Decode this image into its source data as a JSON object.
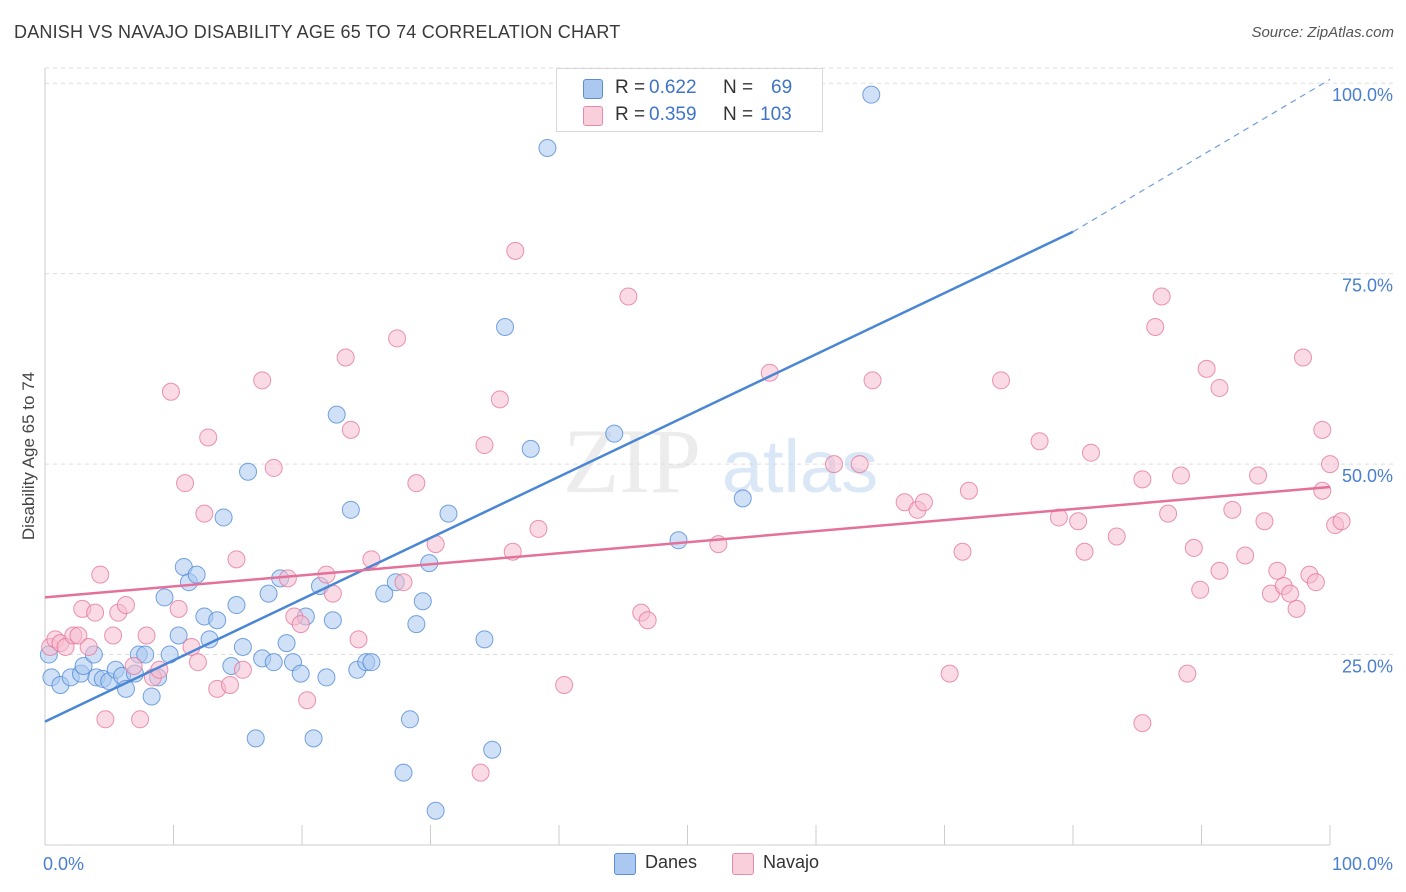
{
  "header": {
    "title": "DANISH VS NAVAJO DISABILITY AGE 65 TO 74 CORRELATION CHART",
    "source": "Source: ZipAtlas.com"
  },
  "watermark": {
    "zip": "ZIP",
    "atlas": "atlas"
  },
  "legend": {
    "rows": [
      {
        "r_label": "R =",
        "r_value": "0.622",
        "n_label": "N =",
        "n_value": "69",
        "color": "#aac8f0"
      },
      {
        "r_label": "R =",
        "r_value": "0.359",
        "n_label": "N =",
        "n_value": "103",
        "color": "#f6bccd"
      }
    ]
  },
  "bottom_legend": [
    {
      "label": "Danes",
      "color": "#aac8f0"
    },
    {
      "label": "Navajo",
      "color": "#f6bccd"
    }
  ],
  "chart_data": {
    "type": "scatter",
    "ylabel": "Disability Age 65 to 74",
    "xlim": [
      0,
      100
    ],
    "ylim": [
      0,
      102
    ],
    "x_tick_labels": [
      "0.0%",
      "100.0%"
    ],
    "y_ticks": [
      25,
      50,
      75,
      100
    ],
    "y_tick_labels": [
      "25.0%",
      "50.0%",
      "75.0%",
      "100.0%"
    ],
    "grid": "horizontal dashed",
    "series": [
      {
        "name": "Danes",
        "color": "#4a86d4",
        "fill": "#aac8f0",
        "trend": {
          "x0": 0,
          "y0": 16.2,
          "x1": 80,
          "y1": 80.5,
          "extend_to": 100,
          "extend_y": 100.5
        },
        "points": [
          [
            0.5,
            22
          ],
          [
            1.2,
            21
          ],
          [
            2.0,
            22
          ],
          [
            2.8,
            22.5
          ],
          [
            3.0,
            23.5
          ],
          [
            3.8,
            25
          ],
          [
            4.0,
            22
          ],
          [
            4.5,
            21.8
          ],
          [
            5.0,
            21.5
          ],
          [
            5.5,
            23
          ],
          [
            6.0,
            22.2
          ],
          [
            6.3,
            20.5
          ],
          [
            7.0,
            22.5
          ],
          [
            7.3,
            25
          ],
          [
            7.8,
            25
          ],
          [
            8.3,
            19.5
          ],
          [
            8.8,
            22
          ],
          [
            9.3,
            32.5
          ],
          [
            9.7,
            25
          ],
          [
            10.4,
            27.5
          ],
          [
            10.8,
            36.5
          ],
          [
            11.2,
            34.5
          ],
          [
            11.8,
            35.5
          ],
          [
            12.4,
            30
          ],
          [
            12.8,
            27
          ],
          [
            13.4,
            29.5
          ],
          [
            13.9,
            43
          ],
          [
            14.5,
            23.5
          ],
          [
            14.9,
            31.5
          ],
          [
            15.4,
            26
          ],
          [
            15.8,
            49
          ],
          [
            16.4,
            14
          ],
          [
            16.9,
            24.5
          ],
          [
            17.4,
            33
          ],
          [
            17.8,
            24
          ],
          [
            18.3,
            35
          ],
          [
            18.8,
            26.5
          ],
          [
            19.3,
            24
          ],
          [
            19.9,
            22.5
          ],
          [
            20.3,
            30
          ],
          [
            20.9,
            14
          ],
          [
            21.4,
            34
          ],
          [
            21.9,
            22
          ],
          [
            22.4,
            29.5
          ],
          [
            22.7,
            56.5
          ],
          [
            23.8,
            44
          ],
          [
            24.3,
            23
          ],
          [
            25.0,
            24
          ],
          [
            25.4,
            24
          ],
          [
            26.4,
            33
          ],
          [
            27.3,
            34.5
          ],
          [
            27.9,
            9.5
          ],
          [
            28.4,
            16.5
          ],
          [
            28.9,
            29
          ],
          [
            29.4,
            32
          ],
          [
            29.9,
            37
          ],
          [
            30.4,
            4.5
          ],
          [
            31.4,
            43.5
          ],
          [
            34.2,
            27
          ],
          [
            34.8,
            12.5
          ],
          [
            35.8,
            68
          ],
          [
            37.8,
            52
          ],
          [
            39.1,
            91.5
          ],
          [
            44.3,
            54
          ],
          [
            49.3,
            40
          ],
          [
            51.9,
            100
          ],
          [
            54.3,
            45.5
          ],
          [
            64.3,
            98.5
          ],
          [
            0.3,
            25
          ]
        ]
      },
      {
        "name": "Navajo",
        "color": "#e3719a",
        "fill": "#f6bccd",
        "trend": {
          "x0": 0,
          "y0": 32.5,
          "x1": 100,
          "y1": 47
        },
        "points": [
          [
            0.4,
            26
          ],
          [
            0.8,
            27
          ],
          [
            1.2,
            26.5
          ],
          [
            1.6,
            26
          ],
          [
            2.2,
            27.5
          ],
          [
            2.6,
            27.5
          ],
          [
            2.9,
            31
          ],
          [
            3.4,
            26
          ],
          [
            3.9,
            30.5
          ],
          [
            4.3,
            35.5
          ],
          [
            4.7,
            16.5
          ],
          [
            5.3,
            27.5
          ],
          [
            5.7,
            30.5
          ],
          [
            6.3,
            31.5
          ],
          [
            6.9,
            23.5
          ],
          [
            7.4,
            16.5
          ],
          [
            7.9,
            27.5
          ],
          [
            8.4,
            22
          ],
          [
            8.9,
            23
          ],
          [
            9.8,
            59.5
          ],
          [
            10.4,
            31
          ],
          [
            10.9,
            47.5
          ],
          [
            11.4,
            26
          ],
          [
            11.9,
            24
          ],
          [
            12.4,
            43.5
          ],
          [
            12.7,
            53.5
          ],
          [
            13.4,
            20.5
          ],
          [
            14.4,
            21
          ],
          [
            14.9,
            37.5
          ],
          [
            15.4,
            23
          ],
          [
            16.9,
            61
          ],
          [
            17.8,
            49.5
          ],
          [
            18.9,
            35
          ],
          [
            19.4,
            30
          ],
          [
            19.9,
            29
          ],
          [
            20.4,
            19
          ],
          [
            21.9,
            35.5
          ],
          [
            22.4,
            33
          ],
          [
            23.4,
            64
          ],
          [
            23.8,
            54.5
          ],
          [
            24.4,
            27
          ],
          [
            25.4,
            37.5
          ],
          [
            27.4,
            66.5
          ],
          [
            27.9,
            34.5
          ],
          [
            28.9,
            47.5
          ],
          [
            30.4,
            39.5
          ],
          [
            34.2,
            52.5
          ],
          [
            33.9,
            9.5
          ],
          [
            35.4,
            58.5
          ],
          [
            36.4,
            38.5
          ],
          [
            36.6,
            78
          ],
          [
            38.4,
            41.5
          ],
          [
            40.4,
            21
          ],
          [
            45.4,
            72
          ],
          [
            46.4,
            30.5
          ],
          [
            46.9,
            29.5
          ],
          [
            52.4,
            39.5
          ],
          [
            56.4,
            62
          ],
          [
            61.4,
            50
          ],
          [
            63.4,
            50
          ],
          [
            64.4,
            61
          ],
          [
            66.9,
            45
          ],
          [
            67.9,
            44
          ],
          [
            68.4,
            45
          ],
          [
            70.4,
            22.5
          ],
          [
            71.4,
            38.5
          ],
          [
            71.9,
            46.5
          ],
          [
            74.4,
            61
          ],
          [
            77.4,
            53
          ],
          [
            78.9,
            43
          ],
          [
            80.4,
            42.5
          ],
          [
            80.9,
            38.5
          ],
          [
            81.4,
            51.5
          ],
          [
            83.4,
            40.5
          ],
          [
            85.4,
            48
          ],
          [
            85.4,
            16
          ],
          [
            86.4,
            68
          ],
          [
            86.9,
            72
          ],
          [
            87.4,
            43.5
          ],
          [
            88.4,
            48.5
          ],
          [
            88.9,
            22.5
          ],
          [
            89.4,
            39
          ],
          [
            89.9,
            33.5
          ],
          [
            90.4,
            62.5
          ],
          [
            91.4,
            60
          ],
          [
            91.4,
            36
          ],
          [
            92.4,
            44
          ],
          [
            93.4,
            38
          ],
          [
            94.4,
            48.5
          ],
          [
            94.9,
            42.5
          ],
          [
            95.4,
            33
          ],
          [
            95.9,
            36
          ],
          [
            96.4,
            34
          ],
          [
            96.9,
            33
          ],
          [
            97.4,
            31
          ],
          [
            97.9,
            64
          ],
          [
            98.4,
            35.5
          ],
          [
            98.9,
            34.5
          ],
          [
            99.4,
            54.5
          ],
          [
            99.4,
            46.5
          ],
          [
            100.0,
            50
          ],
          [
            100.4,
            42
          ],
          [
            100.9,
            42.5
          ]
        ]
      }
    ]
  }
}
